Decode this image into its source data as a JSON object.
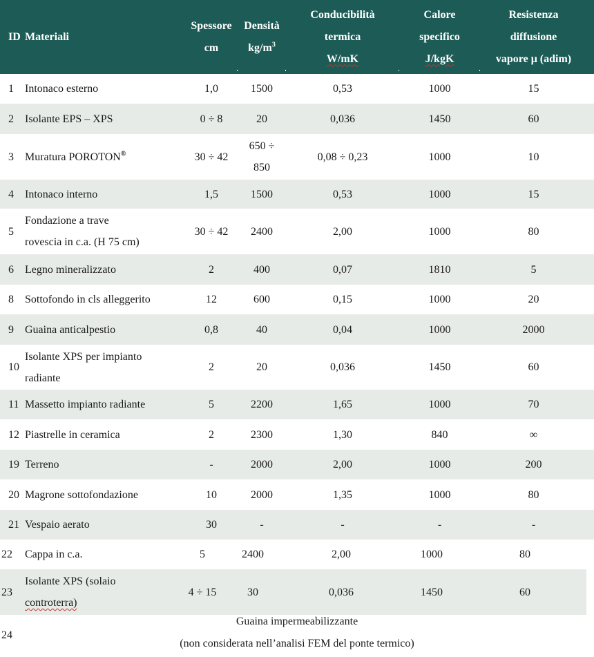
{
  "header": {
    "id": "ID",
    "materiali": "Materiali",
    "spessore_1": "Spessore",
    "spessore_2": "cm",
    "densita_1": "Densità",
    "densita_2": "kg/m",
    "densita_sup": "3",
    "conduc_1": "Conducibilità",
    "conduc_2": "termica",
    "conduc_3": "W/mK",
    "calore_1": "Calore",
    "calore_2": "specifico",
    "calore_3": "J/kgK",
    "resist_1": "Resistenza",
    "resist_2": "diffusione",
    "resist_3": "vapore μ (adim)"
  },
  "rows": [
    {
      "id": "1",
      "mat": [
        "Intonaco esterno"
      ],
      "sp": "1,0",
      "den": [
        "1500"
      ],
      "cond": "0,53",
      "cal": "1000",
      "res": "15"
    },
    {
      "id": "2",
      "mat": [
        "Isolante EPS – XPS"
      ],
      "sp": "0 ÷ 8",
      "den": [
        "20"
      ],
      "cond": "0,036",
      "cal": "1450",
      "res": "60"
    },
    {
      "id": "3",
      "mat": [
        "Muratura POROTON"
      ],
      "mat_sup": "®",
      "sp": "30 ÷ 42",
      "den": [
        "650 ÷",
        "850"
      ],
      "cond": "0,08 ÷ 0,23",
      "cal": "1000",
      "res": "10"
    },
    {
      "id": "4",
      "mat": [
        "Intonaco interno"
      ],
      "sp": "1,5",
      "den": [
        "1500"
      ],
      "cond": "0,53",
      "cal": "1000",
      "res": "15"
    },
    {
      "id": "5",
      "mat": [
        "Fondazione a trave",
        "rovescia in c.a. (H 75 cm)"
      ],
      "sp": "30 ÷ 42",
      "den": [
        "2400"
      ],
      "cond": "2,00",
      "cal": "1000",
      "res": "80"
    },
    {
      "id": "6",
      "mat": [
        "Legno mineralizzato"
      ],
      "sp": "2",
      "den": [
        "400"
      ],
      "cond": "0,07",
      "cal": "1810",
      "res": "5"
    },
    {
      "id": "8",
      "mat": [
        "Sottofondo in cls alleggerito"
      ],
      "sp": "12",
      "den": [
        "600"
      ],
      "cond": "0,15",
      "cal": "1000",
      "res": "20"
    },
    {
      "id": "9",
      "mat": [
        "Guaina anticalpestio"
      ],
      "sp": "0,8",
      "den": [
        "40"
      ],
      "cond": "0,04",
      "cal": "1000",
      "res": "2000"
    },
    {
      "id": "10",
      "mat": [
        "Isolante XPS per impianto",
        "radiante"
      ],
      "sp": "2",
      "den": [
        "20"
      ],
      "cond": "0,036",
      "cal": "1450",
      "res": "60"
    },
    {
      "id": "11",
      "mat": [
        "Massetto impianto radiante"
      ],
      "sp": "5",
      "den": [
        "2200"
      ],
      "cond": "1,65",
      "cal": "1000",
      "res": "70"
    },
    {
      "id": "12",
      "mat": [
        "Piastrelle in ceramica"
      ],
      "sp": "2",
      "den": [
        "2300"
      ],
      "cond": "1,30",
      "cal": "840",
      "res": "∞"
    },
    {
      "id": "19",
      "mat": [
        "Terreno"
      ],
      "sp": "-",
      "den": [
        "2000"
      ],
      "cond": "2,00",
      "cal": "1000",
      "res": "200"
    },
    {
      "id": "20",
      "mat": [
        "Magrone sottofondazione"
      ],
      "sp": "10",
      "den": [
        "2000"
      ],
      "cond": "1,35",
      "cal": "1000",
      "res": "80"
    },
    {
      "id": "21",
      "mat": [
        "Vespaio aerato"
      ],
      "sp": "30",
      "den": [
        "-"
      ],
      "cond": "-",
      "cal": "-",
      "res": "-"
    },
    {
      "id": "22",
      "mat": [
        "Cappa in c.a."
      ],
      "sp": "5",
      "den": [
        "2400"
      ],
      "cond": "2,00",
      "cal": "1000",
      "res": "80"
    },
    {
      "id": "23",
      "mat": [
        "Isolante XPS (solaio",
        "controterra)"
      ],
      "sp": "4 ÷ 15",
      "den": [
        "30"
      ],
      "cond": "0,036",
      "cal": "1450",
      "res": "60"
    }
  ],
  "last": {
    "id": "24",
    "line1": "Guaina impermeabilizzante",
    "line2": "(non considerata nell’analisi FEM del ponte termico)"
  }
}
